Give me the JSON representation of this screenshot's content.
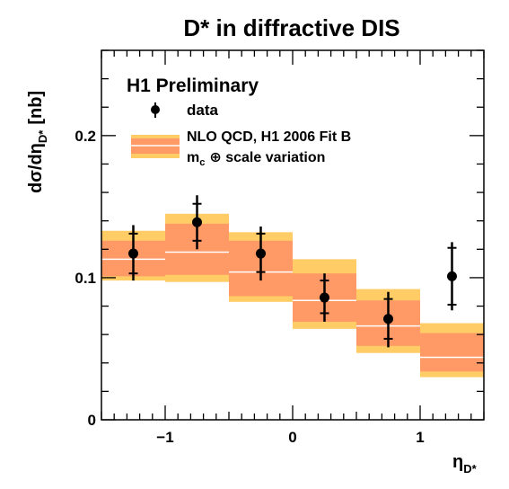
{
  "chart_data": {
    "type": "scatter",
    "title": "D* in diffractive DIS",
    "xlabel": {
      "main": "η",
      "sub": "D*"
    },
    "ylabel": {
      "main": "dσ/dη",
      "sub": "D*",
      "unit": "[nb]"
    },
    "annotation": "H1 Preliminary",
    "xlim": [
      -1.5,
      1.5
    ],
    "ylim": [
      0,
      0.26
    ],
    "x_ticks": [
      {
        "value": -1,
        "label": "−1"
      },
      {
        "value": 0,
        "label": "0"
      },
      {
        "value": 1,
        "label": "1"
      }
    ],
    "y_ticks": [
      {
        "value": 0,
        "label": "0"
      },
      {
        "value": 0.1,
        "label": "0.1"
      },
      {
        "value": 0.2,
        "label": "0.2"
      }
    ],
    "legend": {
      "position": "top-left",
      "data_label": "data",
      "band_label_line1": "NLO QCD, H1 2006 Fit B",
      "band_label_line2_main": "m",
      "band_label_line2_sub": "c",
      "band_label_line2_rest": "⊕ scale variation"
    },
    "series": [
      {
        "name": "data",
        "x": [
          -1.25,
          -0.75,
          -0.25,
          0.25,
          0.75,
          1.25
        ],
        "y": [
          0.117,
          0.139,
          0.117,
          0.086,
          0.071,
          0.101
        ],
        "err_stat_low": [
          0.103,
          0.126,
          0.104,
          0.075,
          0.057,
          0.081
        ],
        "err_stat_high": [
          0.131,
          0.152,
          0.131,
          0.098,
          0.085,
          0.121
        ],
        "err_tot_low": [
          0.098,
          0.12,
          0.098,
          0.069,
          0.051,
          0.077
        ],
        "err_tot_high": [
          0.137,
          0.158,
          0.136,
          0.103,
          0.09,
          0.125
        ]
      },
      {
        "name": "NLO QCD, H1 2006 Fit B",
        "bin_edges": [
          -1.5,
          -1,
          -0.5,
          0,
          0.5,
          1,
          1.5
        ],
        "central": [
          0.113,
          0.118,
          0.104,
          0.084,
          0.066,
          0.044
        ],
        "inner_low": [
          0.101,
          0.102,
          0.087,
          0.069,
          0.052,
          0.034
        ],
        "inner_high": [
          0.126,
          0.138,
          0.126,
          0.103,
          0.084,
          0.061
        ],
        "outer_low": [
          0.098,
          0.097,
          0.083,
          0.064,
          0.047,
          0.03
        ],
        "outer_high": [
          0.133,
          0.145,
          0.132,
          0.113,
          0.092,
          0.068
        ]
      }
    ],
    "colors": {
      "outer_band": "#ffcc66",
      "inner_band": "#ff9966",
      "central_line": "#ffffff",
      "data": "#000000"
    }
  }
}
